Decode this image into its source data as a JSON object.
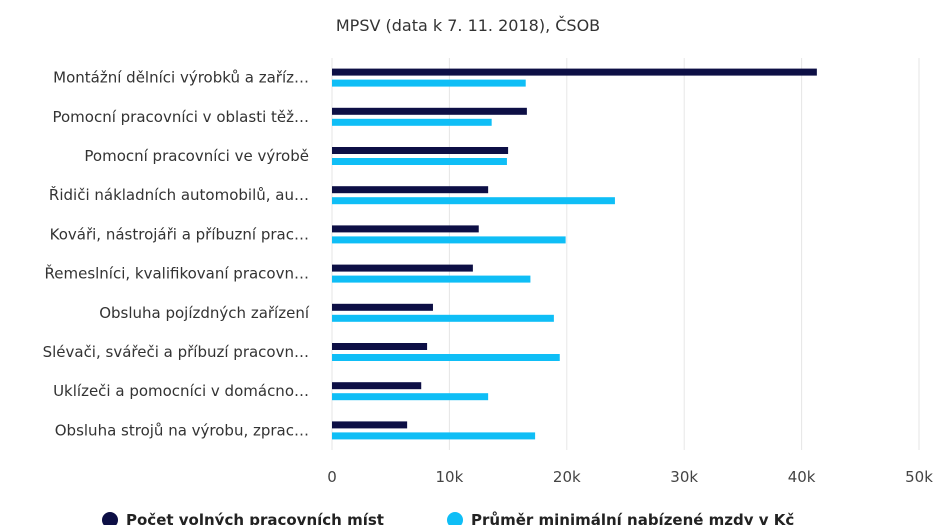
{
  "chart_data": {
    "type": "bar",
    "orientation": "horizontal",
    "title": "MPSV (data k 7. 11. 2018), ČSOB",
    "categories": [
      "Montážní dělníci výrobků a zaříz…",
      "Pomocní pracovníci v oblasti těž…",
      "Pomocní pracovníci ve výrobě",
      "Řidiči nákladních automobilů, au…",
      "Kováři, nástrojáři a příbuzní prac…",
      "Řemeslníci, kvalifikovaní pracovn…",
      "Obsluha pojízdných zařízení",
      "Slévači, svářeči a příbuzí pracovn…",
      "Uklízeči a pomocníci v domácno…",
      "Obsluha strojů na výrobu, zprac…"
    ],
    "series": [
      {
        "name": "Počet volných pracovních míst",
        "color": "#0d0f45",
        "values": [
          41300,
          16600,
          15000,
          13300,
          12500,
          12000,
          8600,
          8100,
          7600,
          6400
        ]
      },
      {
        "name": "Průměr minimální nabízené mzdy v Kč",
        "color": "#0fbef6",
        "values": [
          16500,
          13600,
          14900,
          24100,
          19900,
          16900,
          18900,
          19400,
          13300,
          17300
        ]
      }
    ],
    "xlim": [
      0,
      50000
    ],
    "xticks": [
      0,
      10000,
      20000,
      30000,
      40000,
      50000
    ],
    "xtick_labels": [
      "0",
      "10k",
      "20k",
      "30k",
      "40k",
      "50k"
    ],
    "grid": true,
    "legend_position": "bottom"
  }
}
